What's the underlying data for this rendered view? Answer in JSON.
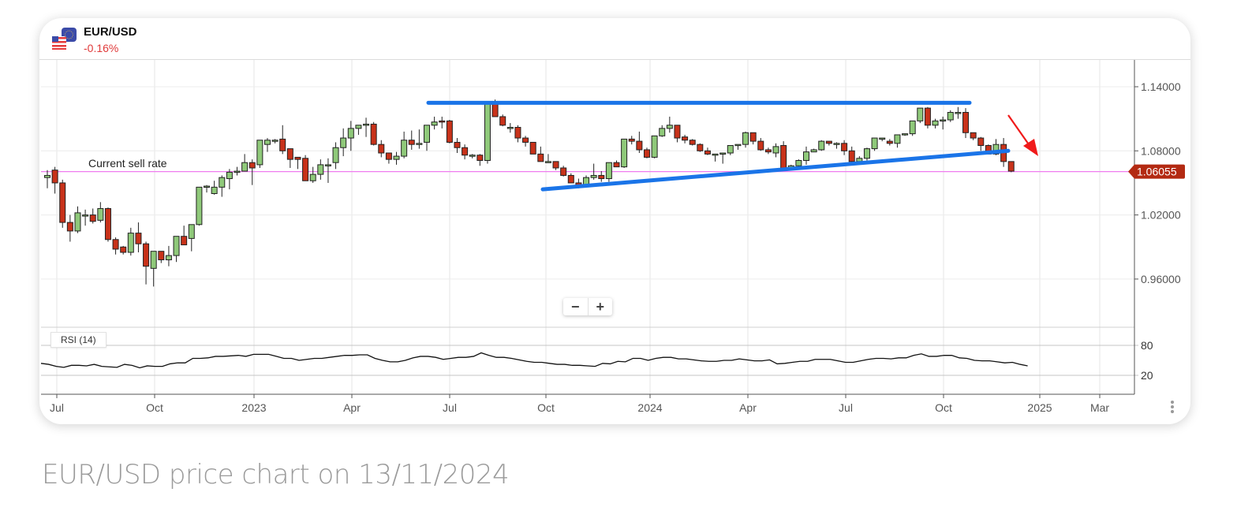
{
  "header": {
    "symbol": "EUR/USD",
    "change": "-0.16%",
    "change_color": "#e03a3a",
    "icons": [
      "eu-flag-icon",
      "us-flag-icon"
    ]
  },
  "annotations": {
    "current_sell_rate_label": "Current sell rate",
    "current_price_tag": "1.06055",
    "price_tag_color": "#b32a12",
    "sell_rate_line_color": "#f07cf0",
    "trendline_color": "#1a74e8",
    "arrow_color": "#f01a1a"
  },
  "controls": {
    "zoom_out": "−",
    "zoom_in": "+"
  },
  "indicator": {
    "label": "RSI (14)",
    "levels": [
      "80",
      "20"
    ]
  },
  "caption": "EUR/USD price chart on 13/11/2024",
  "chart_data": {
    "type": "candlestick",
    "title": "EUR/USD",
    "xlabel": "",
    "ylabel": "",
    "interval": "weekly",
    "x_ticks": [
      {
        "label": "Jul",
        "x": 72
      },
      {
        "label": "Oct",
        "x": 196
      },
      {
        "label": "2023",
        "x": 322
      },
      {
        "label": "Apr",
        "x": 446
      },
      {
        "label": "Jul",
        "x": 570
      },
      {
        "label": "Oct",
        "x": 692
      },
      {
        "label": "2024",
        "x": 824
      },
      {
        "label": "Apr",
        "x": 948
      },
      {
        "label": "Jul",
        "x": 1072
      },
      {
        "label": "Oct",
        "x": 1196
      },
      {
        "label": "2025",
        "x": 1318
      },
      {
        "label": "Mar",
        "x": 1394
      }
    ],
    "y_ticks": [
      "1.14000",
      "1.08000",
      "1.02000",
      "0.96000"
    ],
    "ylim": [
      0.925,
      1.165
    ],
    "current_price": 1.06055,
    "grid": true,
    "candles": [
      [
        1.055,
        1.062,
        1.045,
        1.057
      ],
      [
        1.062,
        1.065,
        1.04,
        1.05
      ],
      [
        1.05,
        1.053,
        1.008,
        1.013
      ],
      [
        1.013,
        1.02,
        0.995,
        1.005
      ],
      [
        1.005,
        1.028,
        1.003,
        1.022
      ],
      [
        1.02,
        1.025,
        1.01,
        1.02
      ],
      [
        1.02,
        1.026,
        1.012,
        1.014
      ],
      [
        1.015,
        1.032,
        1.013,
        1.026
      ],
      [
        1.026,
        1.027,
        0.995,
        0.997
      ],
      [
        0.997,
        0.999,
        0.983,
        0.988
      ],
      [
        0.99,
        0.991,
        0.983,
        0.985
      ],
      [
        0.985,
        1.008,
        0.982,
        1.003
      ],
      [
        1.003,
        1.013,
        0.985,
        0.993
      ],
      [
        0.993,
        0.995,
        0.955,
        0.972
      ],
      [
        0.97,
        0.98,
        0.953,
        0.986
      ],
      [
        0.986,
        0.978,
        0.975,
        0.978
      ],
      [
        0.978,
        0.991,
        0.972,
        0.982
      ],
      [
        0.982,
        1.0,
        0.976,
        1.0
      ],
      [
        1.0,
        1.01,
        0.994,
        0.992
      ],
      [
        0.998,
        1.011,
        0.986,
        1.011
      ],
      [
        1.011,
        1.046,
        1.01,
        1.046
      ],
      [
        1.046,
        1.048,
        1.041,
        1.047
      ],
      [
        1.04,
        1.052,
        1.039,
        1.046
      ],
      [
        1.046,
        1.057,
        1.037,
        1.055
      ],
      [
        1.054,
        1.063,
        1.044,
        1.06
      ],
      [
        1.06,
        1.065,
        1.057,
        1.061
      ],
      [
        1.061,
        1.077,
        1.061,
        1.069
      ],
      [
        1.069,
        1.072,
        1.048,
        1.064
      ],
      [
        1.067,
        1.087,
        1.064,
        1.09
      ],
      [
        1.086,
        1.092,
        1.079,
        1.09
      ],
      [
        1.09,
        1.091,
        1.087,
        1.09
      ],
      [
        1.091,
        1.104,
        1.077,
        1.08
      ],
      [
        1.082,
        1.082,
        1.064,
        1.072
      ],
      [
        1.074,
        1.074,
        1.063,
        1.072
      ],
      [
        1.073,
        1.076,
        1.052,
        1.052
      ],
      [
        1.052,
        1.065,
        1.05,
        1.058
      ],
      [
        1.058,
        1.072,
        1.053,
        1.067
      ],
      [
        1.067,
        1.073,
        1.05,
        1.067
      ],
      [
        1.069,
        1.088,
        1.063,
        1.083
      ],
      [
        1.083,
        1.101,
        1.075,
        1.092
      ],
      [
        1.092,
        1.108,
        1.08,
        1.101
      ],
      [
        1.101,
        1.104,
        1.095,
        1.104
      ],
      [
        1.105,
        1.111,
        1.093,
        1.105
      ],
      [
        1.105,
        1.107,
        1.085,
        1.086
      ],
      [
        1.086,
        1.09,
        1.074,
        1.078
      ],
      [
        1.078,
        1.077,
        1.068,
        1.072
      ],
      [
        1.072,
        1.079,
        1.067,
        1.075
      ],
      [
        1.075,
        1.098,
        1.073,
        1.09
      ],
      [
        1.09,
        1.099,
        1.081,
        1.086
      ],
      [
        1.086,
        1.1,
        1.082,
        1.087
      ],
      [
        1.088,
        1.103,
        1.08,
        1.104
      ],
      [
        1.104,
        1.112,
        1.1,
        1.107
      ],
      [
        1.108,
        1.112,
        1.101,
        1.107
      ],
      [
        1.108,
        1.109,
        1.087,
        1.088
      ],
      [
        1.088,
        1.092,
        1.078,
        1.083
      ],
      [
        1.083,
        1.086,
        1.072,
        1.076
      ],
      [
        1.076,
        1.077,
        1.073,
        1.076
      ],
      [
        1.076,
        1.077,
        1.066,
        1.071
      ],
      [
        1.071,
        1.124,
        1.068,
        1.124
      ],
      [
        1.124,
        1.128,
        1.118,
        1.112
      ],
      [
        1.112,
        1.114,
        1.103,
        1.104
      ],
      [
        1.102,
        1.106,
        1.097,
        1.102
      ],
      [
        1.102,
        1.104,
        1.088,
        1.092
      ],
      [
        1.092,
        1.094,
        1.084,
        1.088
      ],
      [
        1.088,
        1.088,
        1.077,
        1.077
      ],
      [
        1.077,
        1.084,
        1.07,
        1.07
      ],
      [
        1.07,
        1.077,
        1.069,
        1.07
      ],
      [
        1.07,
        1.068,
        1.062,
        1.064
      ],
      [
        1.064,
        1.066,
        1.056,
        1.057
      ],
      [
        1.057,
        1.059,
        1.05,
        1.05
      ],
      [
        1.05,
        1.054,
        1.045,
        1.048
      ],
      [
        1.048,
        1.057,
        1.046,
        1.055
      ],
      [
        1.055,
        1.068,
        1.053,
        1.057
      ],
      [
        1.057,
        1.061,
        1.051,
        1.054
      ],
      [
        1.054,
        1.066,
        1.051,
        1.069
      ],
      [
        1.069,
        1.071,
        1.065,
        1.065
      ],
      [
        1.065,
        1.087,
        1.064,
        1.091
      ],
      [
        1.091,
        1.094,
        1.086,
        1.089
      ],
      [
        1.089,
        1.098,
        1.078,
        1.081
      ],
      [
        1.081,
        1.083,
        1.073,
        1.074
      ],
      [
        1.074,
        1.094,
        1.073,
        1.094
      ],
      [
        1.094,
        1.104,
        1.093,
        1.101
      ],
      [
        1.101,
        1.112,
        1.097,
        1.104
      ],
      [
        1.104,
        1.103,
        1.088,
        1.092
      ],
      [
        1.093,
        1.095,
        1.087,
        1.09
      ],
      [
        1.09,
        1.091,
        1.085,
        1.086
      ],
      [
        1.086,
        1.087,
        1.079,
        1.08
      ],
      [
        1.08,
        1.083,
        1.076,
        1.077
      ],
      [
        1.077,
        1.076,
        1.07,
        1.077
      ],
      [
        1.077,
        1.076,
        1.068,
        1.078
      ],
      [
        1.078,
        1.085,
        1.076,
        1.085
      ],
      [
        1.085,
        1.083,
        1.081,
        1.086
      ],
      [
        1.086,
        1.098,
        1.083,
        1.097
      ],
      [
        1.097,
        1.094,
        1.086,
        1.089
      ],
      [
        1.089,
        1.092,
        1.08,
        1.081
      ],
      [
        1.081,
        1.083,
        1.077,
        1.079
      ],
      [
        1.078,
        1.087,
        1.074,
        1.084
      ],
      [
        1.085,
        1.089,
        1.062,
        1.063
      ],
      [
        1.063,
        1.067,
        1.063,
        1.066
      ],
      [
        1.066,
        1.072,
        1.063,
        1.071
      ],
      [
        1.071,
        1.084,
        1.067,
        1.079
      ],
      [
        1.079,
        1.082,
        1.079,
        1.081
      ],
      [
        1.081,
        1.09,
        1.08,
        1.089
      ],
      [
        1.089,
        1.089,
        1.085,
        1.087
      ],
      [
        1.087,
        1.088,
        1.082,
        1.087
      ],
      [
        1.087,
        1.09,
        1.076,
        1.08
      ],
      [
        1.08,
        1.084,
        1.068,
        1.07
      ],
      [
        1.07,
        1.075,
        1.069,
        1.073
      ],
      [
        1.073,
        1.083,
        1.071,
        1.082
      ],
      [
        1.082,
        1.092,
        1.08,
        1.092
      ],
      [
        1.092,
        1.09,
        1.089,
        1.092
      ],
      [
        1.089,
        1.091,
        1.085,
        1.087
      ],
      [
        1.087,
        1.095,
        1.083,
        1.095
      ],
      [
        1.095,
        1.096,
        1.094,
        1.096
      ],
      [
        1.096,
        1.105,
        1.094,
        1.108
      ],
      [
        1.108,
        1.12,
        1.106,
        1.12
      ],
      [
        1.12,
        1.121,
        1.101,
        1.104
      ],
      [
        1.104,
        1.11,
        1.101,
        1.108
      ],
      [
        1.108,
        1.112,
        1.1,
        1.109
      ],
      [
        1.109,
        1.118,
        1.107,
        1.116
      ],
      [
        1.116,
        1.121,
        1.11,
        1.116
      ],
      [
        1.116,
        1.12,
        1.092,
        1.097
      ],
      [
        1.097,
        1.095,
        1.09,
        1.092
      ],
      [
        1.092,
        1.093,
        1.08,
        1.085
      ],
      [
        1.085,
        1.086,
        1.077,
        1.077
      ],
      [
        1.077,
        1.091,
        1.076,
        1.086
      ],
      [
        1.086,
        1.092,
        1.065,
        1.07
      ],
      [
        1.07,
        1.069,
        1.06,
        1.061
      ]
    ],
    "rsi": {
      "name": "RSI (14)",
      "levels": [
        80,
        20
      ],
      "values": [
        44,
        42,
        38,
        36,
        40,
        40,
        39,
        42,
        38,
        37,
        36,
        42,
        40,
        35,
        39,
        38,
        38,
        43,
        45,
        45,
        54,
        54,
        55,
        58,
        58,
        59,
        60,
        58,
        62,
        62,
        62,
        58,
        54,
        54,
        50,
        52,
        54,
        54,
        56,
        58,
        60,
        60,
        61,
        61,
        54,
        50,
        47,
        47,
        50,
        55,
        58,
        58,
        56,
        52,
        54,
        56,
        56,
        58,
        65,
        60,
        56,
        56,
        54,
        51,
        48,
        46,
        46,
        44,
        42,
        42,
        40,
        40,
        39,
        38,
        44,
        43,
        48,
        47,
        54,
        54,
        50,
        54,
        56,
        56,
        53,
        53,
        51,
        49,
        48,
        48,
        50,
        50,
        53,
        51,
        49,
        49,
        51,
        43,
        44,
        46,
        48,
        48,
        52,
        52,
        52,
        49,
        46,
        46,
        49,
        52,
        54,
        54,
        53,
        55,
        55,
        60,
        63,
        58,
        58,
        60,
        60,
        55,
        54,
        50,
        49,
        49,
        47,
        45,
        46,
        42,
        39
      ]
    },
    "trendlines": [
      {
        "name": "resistance",
        "from": [
          543,
          1.125
        ],
        "to": [
          1229,
          1.125
        ]
      },
      {
        "name": "support",
        "from": [
          688,
          1.044
        ],
        "to": [
          1278,
          1.08
        ]
      }
    ]
  }
}
